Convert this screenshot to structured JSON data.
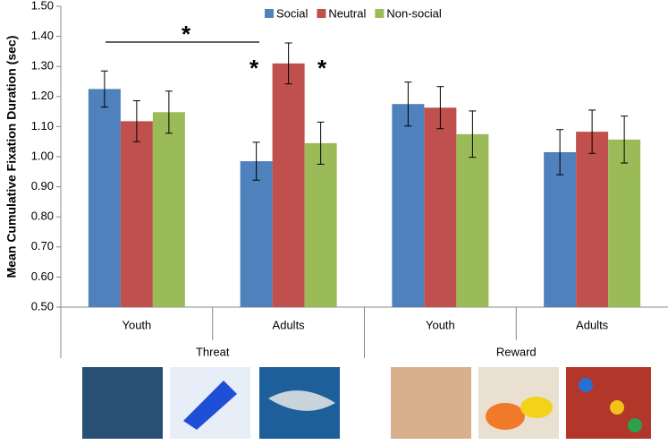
{
  "chart_data": {
    "type": "bar",
    "ylabel": "Mean Cumulative Fixation Duration (sec)",
    "groups": [
      {
        "label": "Threat",
        "categories": [
          "Youth",
          "Adults"
        ]
      },
      {
        "label": "Reward",
        "categories": [
          "Youth",
          "Adults"
        ]
      }
    ],
    "series": [
      {
        "name": "Social",
        "color": "#4f81bd",
        "values": [
          1.225,
          0.985,
          1.175,
          1.015
        ],
        "errors": [
          0.06,
          0.063,
          0.073,
          0.075
        ]
      },
      {
        "name": "Neutral",
        "color": "#c0504d",
        "values": [
          1.118,
          1.31,
          1.163,
          1.083
        ],
        "errors": [
          0.068,
          0.068,
          0.07,
          0.072
        ]
      },
      {
        "name": "Non-social",
        "color": "#9bbb59",
        "values": [
          1.148,
          1.045,
          1.075,
          1.057
        ],
        "errors": [
          0.07,
          0.07,
          0.077,
          0.078
        ]
      }
    ],
    "ylim": [
      0.5,
      1.5
    ],
    "yticks": [
      {
        "value": 0.5,
        "label": "0.50"
      },
      {
        "value": 0.6,
        "label": "0.60"
      },
      {
        "value": 0.7,
        "label": "0.70"
      },
      {
        "value": 0.8,
        "label": "0.80"
      },
      {
        "value": 0.9,
        "label": "0.90"
      },
      {
        "value": 1.0,
        "label": "1.00"
      },
      {
        "value": 1.1,
        "label": "1.10"
      },
      {
        "value": 1.2,
        "label": "1.20"
      },
      {
        "value": 1.3,
        "label": "1.30"
      },
      {
        "value": 1.4,
        "label": "1.40"
      },
      {
        "value": 1.5,
        "label": "1.50"
      }
    ],
    "legend": "top",
    "annotations": [
      "*",
      "*",
      "*"
    ]
  }
}
